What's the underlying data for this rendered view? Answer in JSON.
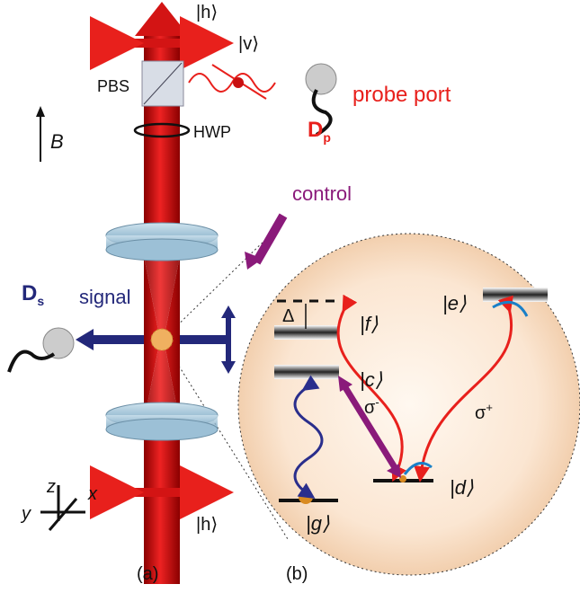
{
  "labels": {
    "h_top": "|h⟩",
    "v": "|v⟩",
    "pbs": "PBS",
    "probe_port": "probe port",
    "dp": {
      "main": "D",
      "sub": "p"
    },
    "b_field": "B",
    "hwp": "HWP",
    "control": "control",
    "ds": {
      "main": "D",
      "sub": "s"
    },
    "signal": "signal",
    "delta": "Δ",
    "f": "|f⟩",
    "e": "|e⟩",
    "c": "|c⟩",
    "sigma_minus": {
      "main": "σ",
      "sup": "-"
    },
    "sigma_plus": {
      "main": "σ",
      "sup": "+"
    },
    "d": "|d⟩",
    "g": "|g⟩",
    "h_bottom": "|h⟩",
    "axis_z": "z",
    "axis_x": "x",
    "axis_y": "y",
    "panel_a": "(a)",
    "panel_b": "(b)"
  }
}
